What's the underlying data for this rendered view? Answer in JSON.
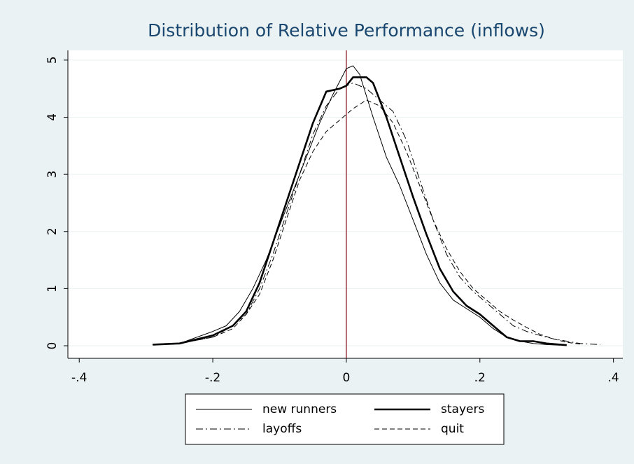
{
  "chart_data": {
    "type": "line",
    "title": "Distribution of Relative Performance (inflows)",
    "xlim": [
      -0.417,
      0.414
    ],
    "ylim": [
      -0.22,
      5.17
    ],
    "xticks": [
      {
        "value": -0.4,
        "label": "-.4"
      },
      {
        "value": -0.2,
        "label": "-.2"
      },
      0,
      {
        "value": 0.2,
        "label": ".2"
      },
      {
        "value": 0.4,
        "label": ".4"
      }
    ],
    "yticks": [
      0,
      1,
      2,
      3,
      4,
      5
    ],
    "grid": true,
    "xline": {
      "value": 0,
      "color": "#8b1a2a"
    },
    "legend": "bottom",
    "series": [
      {
        "name": "new runners",
        "color": "#000000",
        "line_style": "solid",
        "line_width": 1,
        "x": [
          -0.29,
          -0.25,
          -0.2,
          -0.18,
          -0.16,
          -0.14,
          -0.12,
          -0.1,
          -0.08,
          -0.06,
          -0.04,
          -0.02,
          0,
          0.01,
          0.02,
          0.04,
          0.06,
          0.08,
          0.1,
          0.12,
          0.14,
          0.16,
          0.18,
          0.2,
          0.22,
          0.24,
          0.26,
          0.28,
          0.3,
          0.32
        ],
        "values": [
          0.02,
          0.04,
          0.25,
          0.35,
          0.6,
          1.0,
          1.5,
          2.1,
          2.7,
          3.3,
          3.9,
          4.4,
          4.85,
          4.9,
          4.75,
          4.0,
          3.3,
          2.8,
          2.2,
          1.6,
          1.1,
          0.8,
          0.65,
          0.5,
          0.3,
          0.15,
          0.08,
          0.04,
          0.02,
          0.01
        ]
      },
      {
        "name": "stayers",
        "color": "#000000",
        "line_style": "solid",
        "line_width": 2.6,
        "x": [
          -0.29,
          -0.25,
          -0.2,
          -0.17,
          -0.15,
          -0.13,
          -0.11,
          -0.09,
          -0.07,
          -0.05,
          -0.03,
          -0.01,
          0,
          0.01,
          0.02,
          0.03,
          0.04,
          0.06,
          0.08,
          0.1,
          0.12,
          0.14,
          0.16,
          0.18,
          0.2,
          0.22,
          0.24,
          0.26,
          0.28,
          0.3,
          0.33
        ],
        "values": [
          0.02,
          0.04,
          0.18,
          0.35,
          0.6,
          1.1,
          1.8,
          2.5,
          3.2,
          3.9,
          4.45,
          4.5,
          4.55,
          4.7,
          4.7,
          4.7,
          4.6,
          4.0,
          3.3,
          2.6,
          1.95,
          1.35,
          0.95,
          0.7,
          0.55,
          0.35,
          0.15,
          0.08,
          0.08,
          0.04,
          0.01
        ]
      },
      {
        "name": "layoffs",
        "color": "#000000",
        "line_style": "dashdot",
        "line_width": 1,
        "x": [
          -0.29,
          -0.25,
          -0.2,
          -0.17,
          -0.15,
          -0.13,
          -0.11,
          -0.09,
          -0.07,
          -0.05,
          -0.03,
          -0.01,
          0.01,
          0.03,
          0.05,
          0.07,
          0.09,
          0.11,
          0.13,
          0.15,
          0.17,
          0.19,
          0.21,
          0.23,
          0.25,
          0.27,
          0.29,
          0.31,
          0.33,
          0.35,
          0.38
        ],
        "values": [
          0.02,
          0.04,
          0.15,
          0.35,
          0.55,
          1.0,
          1.6,
          2.3,
          3.0,
          3.7,
          4.2,
          4.5,
          4.6,
          4.5,
          4.3,
          4.1,
          3.6,
          2.9,
          2.2,
          1.6,
          1.2,
          0.95,
          0.75,
          0.55,
          0.35,
          0.25,
          0.18,
          0.12,
          0.08,
          0.04,
          0.02
        ]
      },
      {
        "name": "quit",
        "color": "#000000",
        "line_style": "dash",
        "line_width": 1,
        "x": [
          -0.29,
          -0.25,
          -0.2,
          -0.17,
          -0.15,
          -0.13,
          -0.11,
          -0.09,
          -0.07,
          -0.05,
          -0.03,
          -0.01,
          0.01,
          0.03,
          0.05,
          0.07,
          0.09,
          0.11,
          0.13,
          0.15,
          0.17,
          0.19,
          0.21,
          0.23,
          0.25,
          0.27,
          0.29,
          0.31,
          0.33,
          0.35
        ],
        "values": [
          0.02,
          0.04,
          0.15,
          0.3,
          0.55,
          0.9,
          1.5,
          2.2,
          2.9,
          3.4,
          3.75,
          3.95,
          4.15,
          4.3,
          4.2,
          3.9,
          3.4,
          2.8,
          2.2,
          1.7,
          1.3,
          1.0,
          0.8,
          0.6,
          0.45,
          0.32,
          0.2,
          0.12,
          0.06,
          0.03
        ]
      }
    ]
  }
}
